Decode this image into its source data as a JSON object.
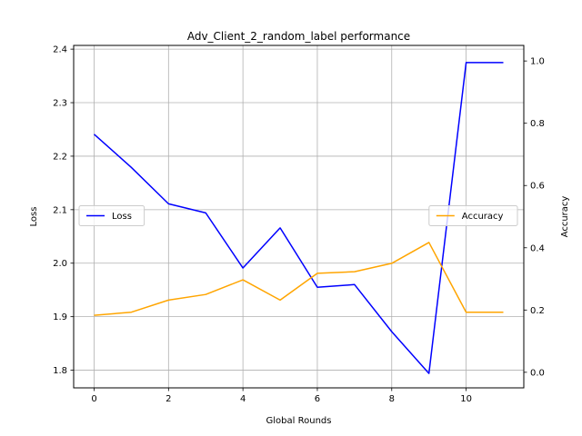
{
  "chart_data": {
    "type": "line",
    "title": "Adv_Client_2_random_label performance",
    "xlabel": "Global Rounds",
    "ylabel": "Loss",
    "y2label": "Accuracy",
    "x": [
      0,
      1,
      2,
      3,
      4,
      5,
      6,
      7,
      8,
      9,
      10,
      11
    ],
    "xlim": [
      -0.55,
      11.55
    ],
    "xticks": [
      0,
      2,
      4,
      6,
      8,
      10
    ],
    "ylim": [
      1.767,
      2.407
    ],
    "yticks": [
      1.8,
      1.9,
      2.0,
      2.1,
      2.2,
      2.3,
      2.4
    ],
    "y2lim": [
      -0.05,
      1.05
    ],
    "y2ticks": [
      0.0,
      0.2,
      0.4,
      0.6,
      0.8,
      1.0
    ],
    "grid": true,
    "series": [
      {
        "name": "Loss",
        "axis": "left",
        "color": "#0000ff",
        "legend_position": "center-left",
        "values": [
          2.241,
          2.179,
          2.111,
          2.094,
          1.991,
          2.066,
          1.955,
          1.96,
          1.872,
          1.794,
          2.375,
          2.375
        ]
      },
      {
        "name": "Accuracy",
        "axis": "right",
        "color": "#ffa500",
        "legend_position": "center-right",
        "values": [
          0.183,
          0.193,
          0.232,
          0.25,
          0.297,
          0.232,
          0.318,
          0.323,
          0.35,
          0.417,
          0.193,
          0.193
        ]
      }
    ]
  }
}
